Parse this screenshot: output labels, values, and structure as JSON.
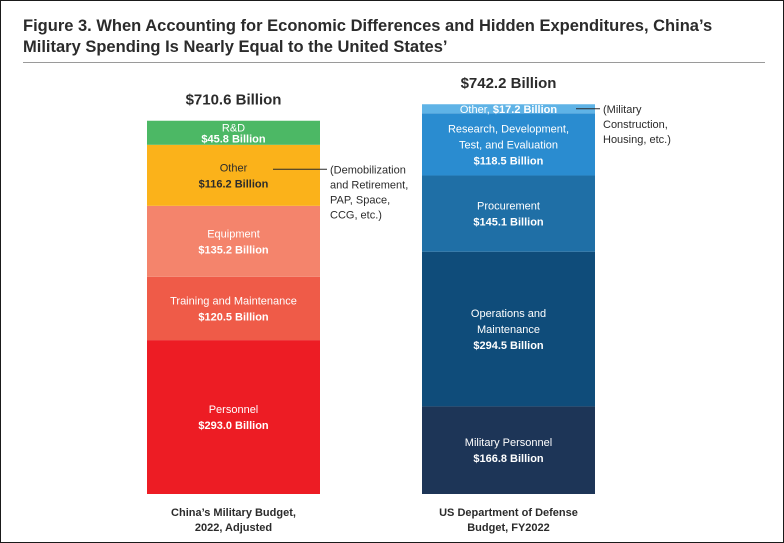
{
  "title": "Figure 3. When Accounting for Economic Differences and Hidden Expenditures, China’s Military Spending Is Nearly Equal to the United States’",
  "chart_data": {
    "type": "bar",
    "stacked": true,
    "unit": "Billion",
    "bars": [
      {
        "category": [
          "China’s Military Budget,",
          "2022, Adjusted"
        ],
        "total": "$710.6 Billion",
        "total_value": 710.6,
        "segments": [
          {
            "name": [
              "Personnel"
            ],
            "value": 293.0,
            "value_label": "$293.0 Billion",
            "color": "#ed1c24",
            "text_color": "#ffffff"
          },
          {
            "name": [
              "Training and Maintenance"
            ],
            "value": 120.5,
            "value_label": "$120.5 Billion",
            "color": "#ef5b48",
            "text_color": "#ffffff"
          },
          {
            "name": [
              "Equipment"
            ],
            "value": 135.2,
            "value_label": "$135.2 Billion",
            "color": "#f4846c",
            "text_color": "#ffffff"
          },
          {
            "name": [
              "Other"
            ],
            "value": 116.2,
            "value_label": "$116.2 Billion",
            "color": "#fbb21a",
            "text_color": "#2b2b2b",
            "note": [
              "(Demobilization",
              "and Retirement,",
              "PAP, Space,",
              "CCG, etc.)"
            ]
          },
          {
            "name": [
              "R&D"
            ],
            "value": 45.8,
            "value_label": "$45.8 Billion",
            "color": "#4cb865",
            "text_color": "#ffffff"
          }
        ]
      },
      {
        "category": [
          "US Department of Defense",
          "Budget, FY2022"
        ],
        "total": "$742.2 Billion",
        "total_value": 742.2,
        "segments": [
          {
            "name": [
              "Military Personnel"
            ],
            "value": 166.8,
            "value_label": "$166.8 Billion",
            "color": "#1d3557",
            "text_color": "#ffffff"
          },
          {
            "name": [
              "Operations and",
              "Maintenance"
            ],
            "value": 294.5,
            "value_label": "$294.5 Billion",
            "color": "#0f4c7a",
            "text_color": "#ffffff"
          },
          {
            "name": [
              "Procurement"
            ],
            "value": 145.1,
            "value_label": "$145.1 Billion",
            "color": "#1f6fa6",
            "text_color": "#ffffff"
          },
          {
            "name": [
              "Research, Development,",
              "Test, and Evaluation"
            ],
            "value": 118.5,
            "value_label": "$118.5 Billion",
            "color": "#2a8cd0",
            "text_color": "#ffffff"
          },
          {
            "name": [
              "Other,"
            ],
            "value": 17.2,
            "value_label": "$17.2 Billion",
            "color": "#5fb3e6",
            "text_color": "#ffffff",
            "inline": true,
            "note": [
              "(Military",
              "Construction,",
              "Housing, etc.)"
            ]
          }
        ]
      }
    ]
  }
}
